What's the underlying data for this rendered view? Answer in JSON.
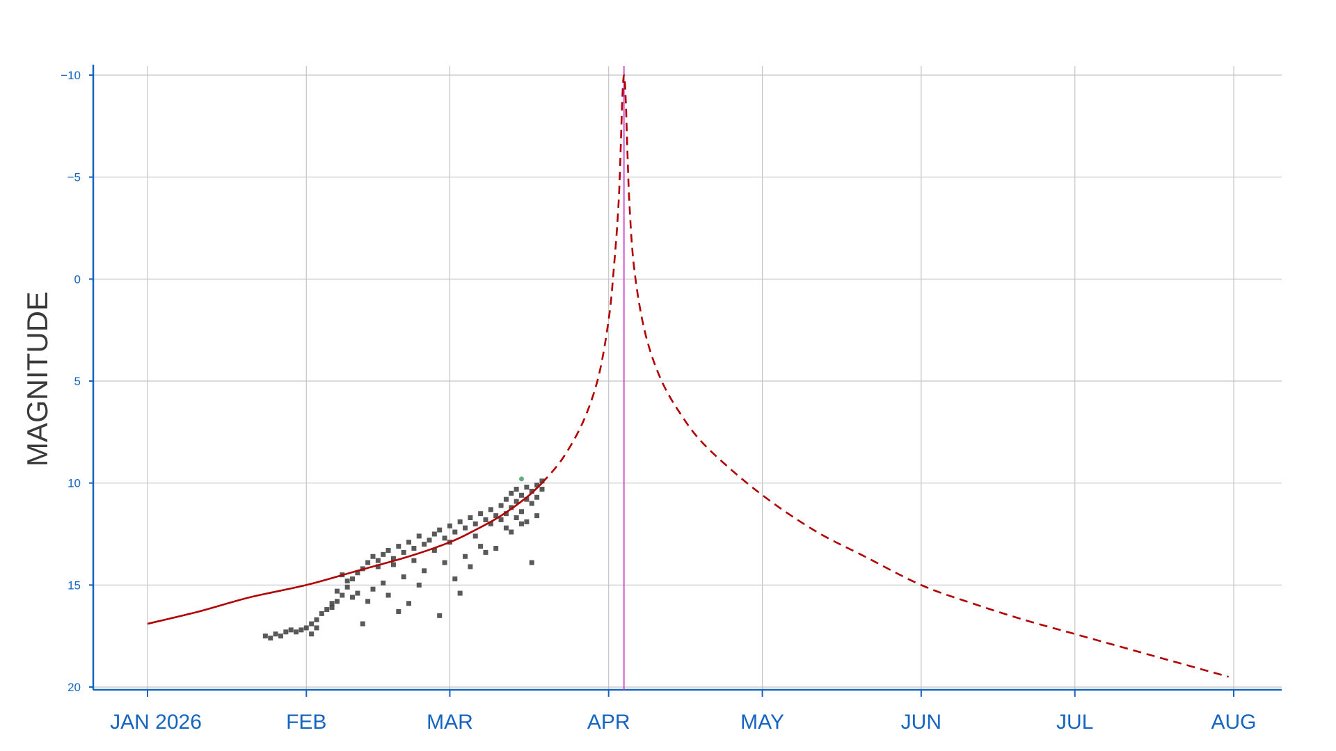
{
  "chart_data": {
    "type": "line",
    "title": "",
    "xlabel": "",
    "ylabel": "MAGNITUDE",
    "y_inverted": true,
    "ylim": [
      20,
      -10
    ],
    "xlim": [
      "2026-01-01",
      "2026-08-01"
    ],
    "yticks": [
      {
        "value": -10,
        "label": "−10"
      },
      {
        "value": -5,
        "label": "−5"
      },
      {
        "value": 0,
        "label": "0"
      },
      {
        "value": 5,
        "label": "5"
      },
      {
        "value": 10,
        "label": "10"
      },
      {
        "value": 15,
        "label": "15"
      },
      {
        "value": 20,
        "label": "20"
      }
    ],
    "xticks": [
      {
        "date": "2026-01-01",
        "label": "JAN 2026"
      },
      {
        "date": "2026-02-01",
        "label": "FEB"
      },
      {
        "date": "2026-03-01",
        "label": "MAR"
      },
      {
        "date": "2026-04-01",
        "label": "APR"
      },
      {
        "date": "2026-05-01",
        "label": "MAY"
      },
      {
        "date": "2026-06-01",
        "label": "JUN"
      },
      {
        "date": "2026-07-01",
        "label": "JUL"
      },
      {
        "date": "2026-08-01",
        "label": "AUG"
      }
    ],
    "grid": true,
    "perihelion_marker": {
      "date": "2026-04-04",
      "color": "#cc33cc"
    },
    "series": [
      {
        "style": "solid",
        "color": "#b00000",
        "points": [
          {
            "x": "2026-01-01",
            "y": 16.9
          },
          {
            "x": "2026-01-11",
            "y": 16.3
          },
          {
            "x": "2026-01-21",
            "y": 15.6
          },
          {
            "x": "2026-02-01",
            "y": 15.0
          },
          {
            "x": "2026-02-11",
            "y": 14.3
          },
          {
            "x": "2026-02-21",
            "y": 13.6
          },
          {
            "x": "2026-03-01",
            "y": 12.9
          },
          {
            "x": "2026-03-06",
            "y": 12.3
          },
          {
            "x": "2026-03-11",
            "y": 11.6
          },
          {
            "x": "2026-03-16",
            "y": 10.7
          },
          {
            "x": "2026-03-19",
            "y": 10.0
          }
        ]
      },
      {
        "style": "dashed",
        "color": "#b00000",
        "points": [
          {
            "x": "2026-03-19",
            "y": 10.0
          },
          {
            "x": "2026-03-23",
            "y": 8.8
          },
          {
            "x": "2026-03-27",
            "y": 7.0
          },
          {
            "x": "2026-03-30",
            "y": 4.8
          },
          {
            "x": "2026-04-01",
            "y": 2.0
          },
          {
            "x": "2026-04-02",
            "y": -0.5
          },
          {
            "x": "2026-04-03",
            "y": -4.0
          },
          {
            "x": "2026-04-04",
            "y": -10.0
          },
          {
            "x": "2026-04-05",
            "y": -4.0
          },
          {
            "x": "2026-04-06",
            "y": -0.5
          },
          {
            "x": "2026-04-08",
            "y": 2.5
          },
          {
            "x": "2026-04-11",
            "y": 4.8
          },
          {
            "x": "2026-04-15",
            "y": 6.6
          },
          {
            "x": "2026-04-20",
            "y": 8.2
          },
          {
            "x": "2026-04-30",
            "y": 10.4
          },
          {
            "x": "2026-05-11",
            "y": 12.3
          },
          {
            "x": "2026-05-21",
            "y": 13.6
          },
          {
            "x": "2026-06-01",
            "y": 15.0
          },
          {
            "x": "2026-06-11",
            "y": 15.9
          },
          {
            "x": "2026-06-21",
            "y": 16.7
          },
          {
            "x": "2026-07-01",
            "y": 17.4
          },
          {
            "x": "2026-07-11",
            "y": 18.1
          },
          {
            "x": "2026-07-21",
            "y": 18.8
          },
          {
            "x": "2026-07-31",
            "y": 19.5
          }
        ]
      }
    ],
    "observations": {
      "color": "#3c3c3c",
      "points": [
        {
          "x": "2026-01-24",
          "y": 17.5
        },
        {
          "x": "2026-01-25",
          "y": 17.6
        },
        {
          "x": "2026-01-26",
          "y": 17.4
        },
        {
          "x": "2026-01-27",
          "y": 17.5
        },
        {
          "x": "2026-01-28",
          "y": 17.3
        },
        {
          "x": "2026-01-29",
          "y": 17.2
        },
        {
          "x": "2026-01-30",
          "y": 17.3
        },
        {
          "x": "2026-01-31",
          "y": 17.2
        },
        {
          "x": "2026-02-01",
          "y": 17.1
        },
        {
          "x": "2026-02-02",
          "y": 16.9
        },
        {
          "x": "2026-02-02",
          "y": 17.4
        },
        {
          "x": "2026-02-03",
          "y": 16.7
        },
        {
          "x": "2026-02-03",
          "y": 17.1
        },
        {
          "x": "2026-02-04",
          "y": 16.4
        },
        {
          "x": "2026-02-05",
          "y": 16.2
        },
        {
          "x": "2026-02-06",
          "y": 16.1
        },
        {
          "x": "2026-02-06",
          "y": 15.9
        },
        {
          "x": "2026-02-07",
          "y": 15.8
        },
        {
          "x": "2026-02-07",
          "y": 15.3
        },
        {
          "x": "2026-02-08",
          "y": 15.5
        },
        {
          "x": "2026-02-08",
          "y": 14.5
        },
        {
          "x": "2026-02-09",
          "y": 14.8
        },
        {
          "x": "2026-02-09",
          "y": 15.1
        },
        {
          "x": "2026-02-10",
          "y": 14.7
        },
        {
          "x": "2026-02-10",
          "y": 15.6
        },
        {
          "x": "2026-02-11",
          "y": 14.4
        },
        {
          "x": "2026-02-11",
          "y": 15.4
        },
        {
          "x": "2026-02-12",
          "y": 14.2
        },
        {
          "x": "2026-02-12",
          "y": 16.9
        },
        {
          "x": "2026-02-13",
          "y": 13.9
        },
        {
          "x": "2026-02-13",
          "y": 15.8
        },
        {
          "x": "2026-02-14",
          "y": 13.6
        },
        {
          "x": "2026-02-14",
          "y": 15.2
        },
        {
          "x": "2026-02-15",
          "y": 13.8
        },
        {
          "x": "2026-02-15",
          "y": 14.1
        },
        {
          "x": "2026-02-16",
          "y": 13.5
        },
        {
          "x": "2026-02-16",
          "y": 14.9
        },
        {
          "x": "2026-02-17",
          "y": 13.3
        },
        {
          "x": "2026-02-17",
          "y": 15.5
        },
        {
          "x": "2026-02-18",
          "y": 13.7
        },
        {
          "x": "2026-02-18",
          "y": 14.0
        },
        {
          "x": "2026-02-19",
          "y": 13.1
        },
        {
          "x": "2026-02-19",
          "y": 16.3
        },
        {
          "x": "2026-02-20",
          "y": 13.4
        },
        {
          "x": "2026-02-20",
          "y": 14.6
        },
        {
          "x": "2026-02-21",
          "y": 12.9
        },
        {
          "x": "2026-02-21",
          "y": 15.9
        },
        {
          "x": "2026-02-22",
          "y": 13.2
        },
        {
          "x": "2026-02-22",
          "y": 13.8
        },
        {
          "x": "2026-02-23",
          "y": 12.6
        },
        {
          "x": "2026-02-23",
          "y": 15.0
        },
        {
          "x": "2026-02-24",
          "y": 13.0
        },
        {
          "x": "2026-02-24",
          "y": 14.3
        },
        {
          "x": "2026-02-25",
          "y": 12.8
        },
        {
          "x": "2026-02-26",
          "y": 12.5
        },
        {
          "x": "2026-02-26",
          "y": 13.3
        },
        {
          "x": "2026-02-27",
          "y": 12.3
        },
        {
          "x": "2026-02-27",
          "y": 16.5
        },
        {
          "x": "2026-02-28",
          "y": 12.7
        },
        {
          "x": "2026-02-28",
          "y": 13.9
        },
        {
          "x": "2026-03-01",
          "y": 12.1
        },
        {
          "x": "2026-03-01",
          "y": 12.9
        },
        {
          "x": "2026-03-02",
          "y": 12.4
        },
        {
          "x": "2026-03-02",
          "y": 14.7
        },
        {
          "x": "2026-03-03",
          "y": 11.9
        },
        {
          "x": "2026-03-03",
          "y": 15.4
        },
        {
          "x": "2026-03-04",
          "y": 12.2
        },
        {
          "x": "2026-03-04",
          "y": 13.6
        },
        {
          "x": "2026-03-05",
          "y": 11.7
        },
        {
          "x": "2026-03-05",
          "y": 14.1
        },
        {
          "x": "2026-03-06",
          "y": 12.0
        },
        {
          "x": "2026-03-06",
          "y": 12.6
        },
        {
          "x": "2026-03-07",
          "y": 11.5
        },
        {
          "x": "2026-03-07",
          "y": 13.1
        },
        {
          "x": "2026-03-08",
          "y": 11.8
        },
        {
          "x": "2026-03-08",
          "y": 13.4
        },
        {
          "x": "2026-03-09",
          "y": 11.3
        },
        {
          "x": "2026-03-09",
          "y": 12.0
        },
        {
          "x": "2026-03-10",
          "y": 11.6
        },
        {
          "x": "2026-03-10",
          "y": 13.2
        },
        {
          "x": "2026-03-11",
          "y": 11.1
        },
        {
          "x": "2026-03-11",
          "y": 11.8
        },
        {
          "x": "2026-03-12",
          "y": 10.8
        },
        {
          "x": "2026-03-12",
          "y": 11.5
        },
        {
          "x": "2026-03-12",
          "y": 12.2
        },
        {
          "x": "2026-03-13",
          "y": 10.5
        },
        {
          "x": "2026-03-13",
          "y": 11.2
        },
        {
          "x": "2026-03-13",
          "y": 12.4
        },
        {
          "x": "2026-03-14",
          "y": 10.3
        },
        {
          "x": "2026-03-14",
          "y": 10.9
        },
        {
          "x": "2026-03-14",
          "y": 11.7
        },
        {
          "x": "2026-03-15",
          "y": 10.6
        },
        {
          "x": "2026-03-15",
          "y": 11.4
        },
        {
          "x": "2026-03-15",
          "y": 12.0
        },
        {
          "x": "2026-03-16",
          "y": 10.2
        },
        {
          "x": "2026-03-16",
          "y": 10.8
        },
        {
          "x": "2026-03-16",
          "y": 11.9
        },
        {
          "x": "2026-03-17",
          "y": 10.4
        },
        {
          "x": "2026-03-17",
          "y": 11.0
        },
        {
          "x": "2026-03-17",
          "y": 13.9
        },
        {
          "x": "2026-03-18",
          "y": 10.1
        },
        {
          "x": "2026-03-18",
          "y": 10.7
        },
        {
          "x": "2026-03-18",
          "y": 11.6
        },
        {
          "x": "2026-03-19",
          "y": 9.9
        },
        {
          "x": "2026-03-19",
          "y": 10.3
        }
      ]
    },
    "highlight_point": {
      "x": "2026-03-15",
      "y": 9.8,
      "color": "#5fae7f"
    }
  }
}
